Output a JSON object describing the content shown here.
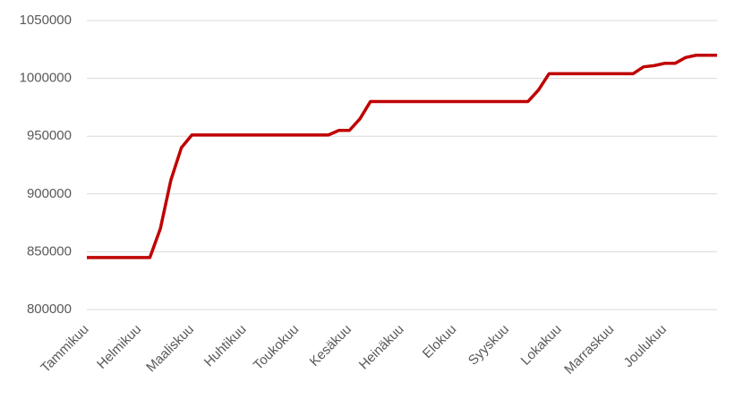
{
  "chart_data": {
    "type": "line",
    "categories": [
      "Tammikuu",
      null,
      null,
      null,
      null,
      "Helmikuu",
      null,
      null,
      null,
      null,
      "Maaliskuu",
      null,
      null,
      null,
      null,
      "Huhtikuu",
      null,
      null,
      null,
      null,
      "Toukokuu",
      null,
      null,
      null,
      null,
      "Kesäkuu",
      null,
      null,
      null,
      null,
      "Heinäkuu",
      null,
      null,
      null,
      null,
      "Elokuu",
      null,
      null,
      null,
      null,
      "Syyskuu",
      null,
      null,
      null,
      null,
      "Lokakuu",
      null,
      null,
      null,
      null,
      "Marraskuu",
      null,
      null,
      null,
      null,
      "Joulukuu",
      null,
      null,
      null,
      null,
      null
    ],
    "values": [
      845000,
      845000,
      845000,
      845000,
      845000,
      845000,
      845000,
      870000,
      912000,
      940000,
      951000,
      951000,
      951000,
      951000,
      951000,
      951000,
      951000,
      951000,
      951000,
      951000,
      951000,
      951000,
      951000,
      951000,
      955000,
      955000,
      965000,
      980000,
      980000,
      980000,
      980000,
      980000,
      980000,
      980000,
      980000,
      980000,
      980000,
      980000,
      980000,
      980000,
      980000,
      980000,
      980000,
      990000,
      1004000,
      1004000,
      1004000,
      1004000,
      1004000,
      1004000,
      1004000,
      1004000,
      1004000,
      1010000,
      1011000,
      1013000,
      1013000,
      1018000,
      1020000,
      1020000,
      1020000
    ],
    "color": "#c00000",
    "ylim": [
      800000,
      1050000
    ],
    "yticks": [
      800000,
      850000,
      900000,
      950000,
      1000000,
      1050000
    ],
    "grid": true
  }
}
